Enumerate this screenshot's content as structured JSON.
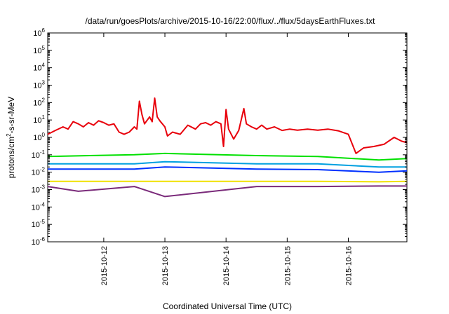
{
  "chart_data": {
    "type": "line",
    "title": "/data/run/goesPlots/archive/2015-10-16/22:00/flux/../flux/5daysEarthFluxes.txt",
    "xlabel": "Coordinated Universal Time (UTC)",
    "ylabel": "protons/cm2-s-sr-MeV",
    "ylabel_parts": {
      "before": "protons/cm",
      "sup": "2",
      "after": "-s-sr-MeV"
    },
    "yscale": "log",
    "ylim": [
      1e-06,
      1000000.0
    ],
    "y_ticks": [
      {
        "base": "10",
        "exp": "-6"
      },
      {
        "base": "10",
        "exp": "-5"
      },
      {
        "base": "10",
        "exp": "-4"
      },
      {
        "base": "10",
        "exp": "-3"
      },
      {
        "base": "10",
        "exp": "-2"
      },
      {
        "base": "10",
        "exp": "-1"
      },
      {
        "base": "10",
        "exp": "0"
      },
      {
        "base": "10",
        "exp": "1"
      },
      {
        "base": "10",
        "exp": "2"
      },
      {
        "base": "10",
        "exp": "3"
      },
      {
        "base": "10",
        "exp": "4"
      },
      {
        "base": "10",
        "exp": "5"
      },
      {
        "base": "10",
        "exp": "6"
      }
    ],
    "xlim": [
      "2015-10-11 02:00",
      "2015-10-16 23:00"
    ],
    "x_ticks": [
      "2015-10-12",
      "2015-10-13",
      "2015-10-14",
      "2015-10-15",
      "2015-10-16"
    ],
    "grid": false,
    "series_colors": [
      "#e8000b",
      "#00e000",
      "#00a0e0",
      "#0030ff",
      "#f0e000",
      "#7a2a7a"
    ],
    "series": [
      {
        "color": "#e8000b",
        "x": [
          "2015-10-11 02:00",
          "2015-10-11 05:00",
          "2015-10-11 08:00",
          "2015-10-11 10:00",
          "2015-10-11 12:00",
          "2015-10-11 14:00",
          "2015-10-11 16:00",
          "2015-10-11 18:00",
          "2015-10-11 20:00",
          "2015-10-11 22:00",
          "2015-10-12 00:00",
          "2015-10-12 02:00",
          "2015-10-12 04:00",
          "2015-10-12 06:00",
          "2015-10-12 08:00",
          "2015-10-12 10:00",
          "2015-10-12 12:00",
          "2015-10-12 13:00",
          "2015-10-12 14:00",
          "2015-10-12 15:00",
          "2015-10-12 16:00",
          "2015-10-12 18:00",
          "2015-10-12 19:00",
          "2015-10-12 20:00",
          "2015-10-12 21:00",
          "2015-10-12 22:00",
          "2015-10-13 00:00",
          "2015-10-13 01:00",
          "2015-10-13 03:00",
          "2015-10-13 06:00",
          "2015-10-13 09:00",
          "2015-10-13 12:00",
          "2015-10-13 14:00",
          "2015-10-13 16:00",
          "2015-10-13 18:00",
          "2015-10-13 20:00",
          "2015-10-13 22:00",
          "2015-10-13 23:00",
          "2015-10-14 00:00",
          "2015-10-14 01:00",
          "2015-10-14 03:00",
          "2015-10-14 05:00",
          "2015-10-14 07:00",
          "2015-10-14 08:00",
          "2015-10-14 10:00",
          "2015-10-14 12:00",
          "2015-10-14 14:00",
          "2015-10-14 16:00",
          "2015-10-14 19:00",
          "2015-10-14 22:00",
          "2015-10-15 01:00",
          "2015-10-15 04:00",
          "2015-10-15 08:00",
          "2015-10-15 12:00",
          "2015-10-15 16:00",
          "2015-10-15 20:00",
          "2015-10-16 00:00",
          "2015-10-16 03:00",
          "2015-10-16 06:00",
          "2015-10-16 10:00",
          "2015-10-16 14:00",
          "2015-10-16 18:00",
          "2015-10-16 21:00",
          "2015-10-16 23:00"
        ],
        "values": [
          1.5,
          2.5,
          4,
          3,
          8,
          6,
          4,
          7,
          5,
          9,
          7,
          5,
          6,
          2,
          1.5,
          2,
          4,
          3,
          120,
          20,
          6,
          15,
          8,
          180,
          15,
          9,
          4,
          1.2,
          2,
          1.5,
          5,
          3,
          6,
          7,
          5,
          8,
          6,
          0.3,
          40,
          3,
          0.8,
          2.5,
          45,
          6,
          4,
          3,
          5,
          3,
          4,
          2.5,
          3,
          2.6,
          3,
          2.6,
          3,
          2.4,
          1.5,
          0.12,
          0.25,
          0.3,
          0.4,
          1,
          0.6,
          0.5
        ]
      },
      {
        "color": "#00e000",
        "x": [
          "2015-10-11 02:00",
          "2015-10-12 12:00",
          "2015-10-13 00:00",
          "2015-10-14 12:00",
          "2015-10-15 12:00",
          "2015-10-16 12:00",
          "2015-10-16 23:00"
        ],
        "values": [
          0.08,
          0.1,
          0.12,
          0.09,
          0.08,
          0.05,
          0.06
        ]
      },
      {
        "color": "#00a0e0",
        "x": [
          "2015-10-11 02:00",
          "2015-10-12 12:00",
          "2015-10-13 00:00",
          "2015-10-14 12:00",
          "2015-10-15 12:00",
          "2015-10-16 12:00",
          "2015-10-16 23:00"
        ],
        "values": [
          0.03,
          0.03,
          0.04,
          0.03,
          0.03,
          0.02,
          0.02
        ]
      },
      {
        "color": "#0030ff",
        "x": [
          "2015-10-11 02:00",
          "2015-10-12 12:00",
          "2015-10-13 00:00",
          "2015-10-14 12:00",
          "2015-10-15 12:00",
          "2015-10-16 12:00",
          "2015-10-16 23:00"
        ],
        "values": [
          0.015,
          0.015,
          0.02,
          0.015,
          0.014,
          0.01,
          0.012
        ]
      },
      {
        "color": "#f0e000",
        "x": [
          "2015-10-11 02:00",
          "2015-10-12 12:00",
          "2015-10-13 00:00",
          "2015-10-14 12:00",
          "2015-10-15 12:00",
          "2015-10-16 12:00",
          "2015-10-16 23:00"
        ],
        "values": [
          0.003,
          0.003,
          0.003,
          0.003,
          0.003,
          0.0028,
          0.003
        ]
      },
      {
        "color": "#7a2a7a",
        "x": [
          "2015-10-11 02:00",
          "2015-10-11 14:00",
          "2015-10-12 12:00",
          "2015-10-13 00:00",
          "2015-10-14 12:00",
          "2015-10-15 12:00",
          "2015-10-16 12:00",
          "2015-10-16 23:00"
        ],
        "values": [
          0.0015,
          0.0008,
          0.0015,
          0.0004,
          0.0015,
          0.0015,
          0.0016,
          0.0016
        ]
      }
    ]
  }
}
